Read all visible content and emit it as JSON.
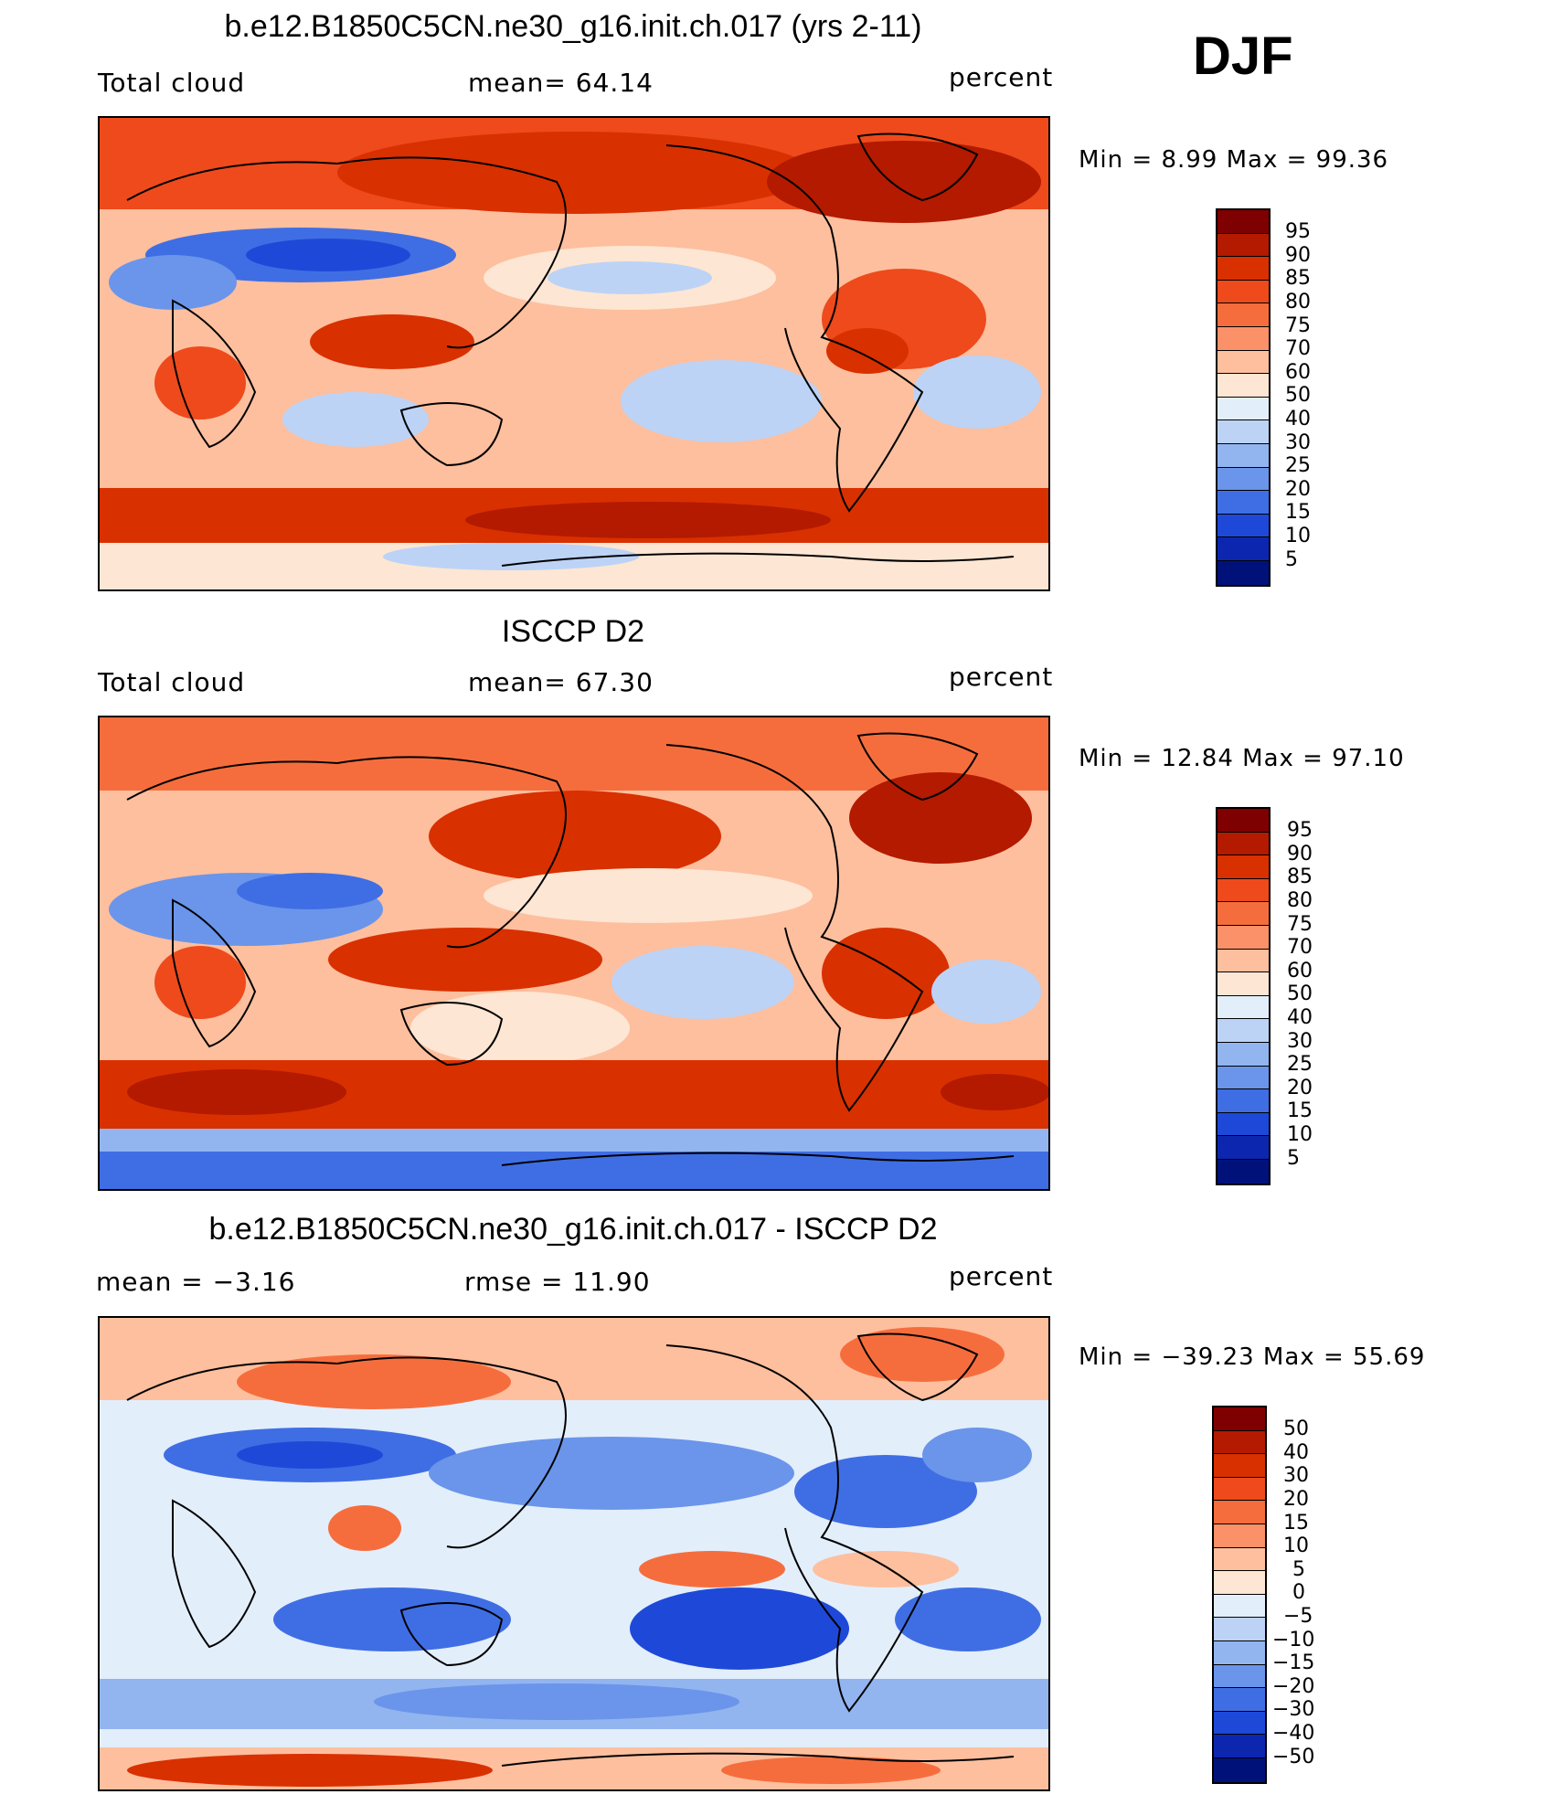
{
  "season": "DJF",
  "panels": [
    {
      "title": "b.e12.B1850C5CN.ne30_g16.init.ch.017 (yrs 2-11)",
      "left_label": "Total cloud",
      "center_label": "mean=   64.14",
      "right_label": "percent",
      "minmax": "Min =    8.99  Max =    99.36",
      "colorbar_labels": [
        "95",
        "90",
        "85",
        "80",
        "75",
        "70",
        "60",
        "50",
        "40",
        "30",
        "25",
        "20",
        "15",
        "10",
        "5"
      ]
    },
    {
      "title": "ISCCP D2",
      "left_label": "Total cloud",
      "center_label": "mean=   67.30",
      "right_label": "percent",
      "minmax": "Min =   12.84  Max =    97.10",
      "colorbar_labels": [
        "95",
        "90",
        "85",
        "80",
        "75",
        "70",
        "60",
        "50",
        "40",
        "30",
        "25",
        "20",
        "15",
        "10",
        "5"
      ]
    },
    {
      "title": "b.e12.B1850C5CN.ne30_g16.init.ch.017 - ISCCP D2",
      "left_label": "mean =   −3.16",
      "center_label": "rmse =   11.90",
      "right_label": "percent",
      "minmax": "Min = −39.23  Max =    55.69",
      "colorbar_labels": [
        "50",
        "40",
        "30",
        "20",
        "15",
        "10",
        "5",
        "0",
        "−5",
        "−10",
        "−15",
        "−20",
        "−30",
        "−40",
        "−50"
      ]
    }
  ],
  "colors": {
    "scale": [
      "#7f0000",
      "#b31a00",
      "#d93000",
      "#ee4a1c",
      "#f66d3d",
      "#fb9168",
      "#fdbf9e",
      "#fde6d3",
      "#e3eefb",
      "#bcd3f6",
      "#92b5f0",
      "#6a95ea",
      "#3f6ee4",
      "#1e49d8",
      "#0d26b0",
      "#00127a"
    ]
  }
}
